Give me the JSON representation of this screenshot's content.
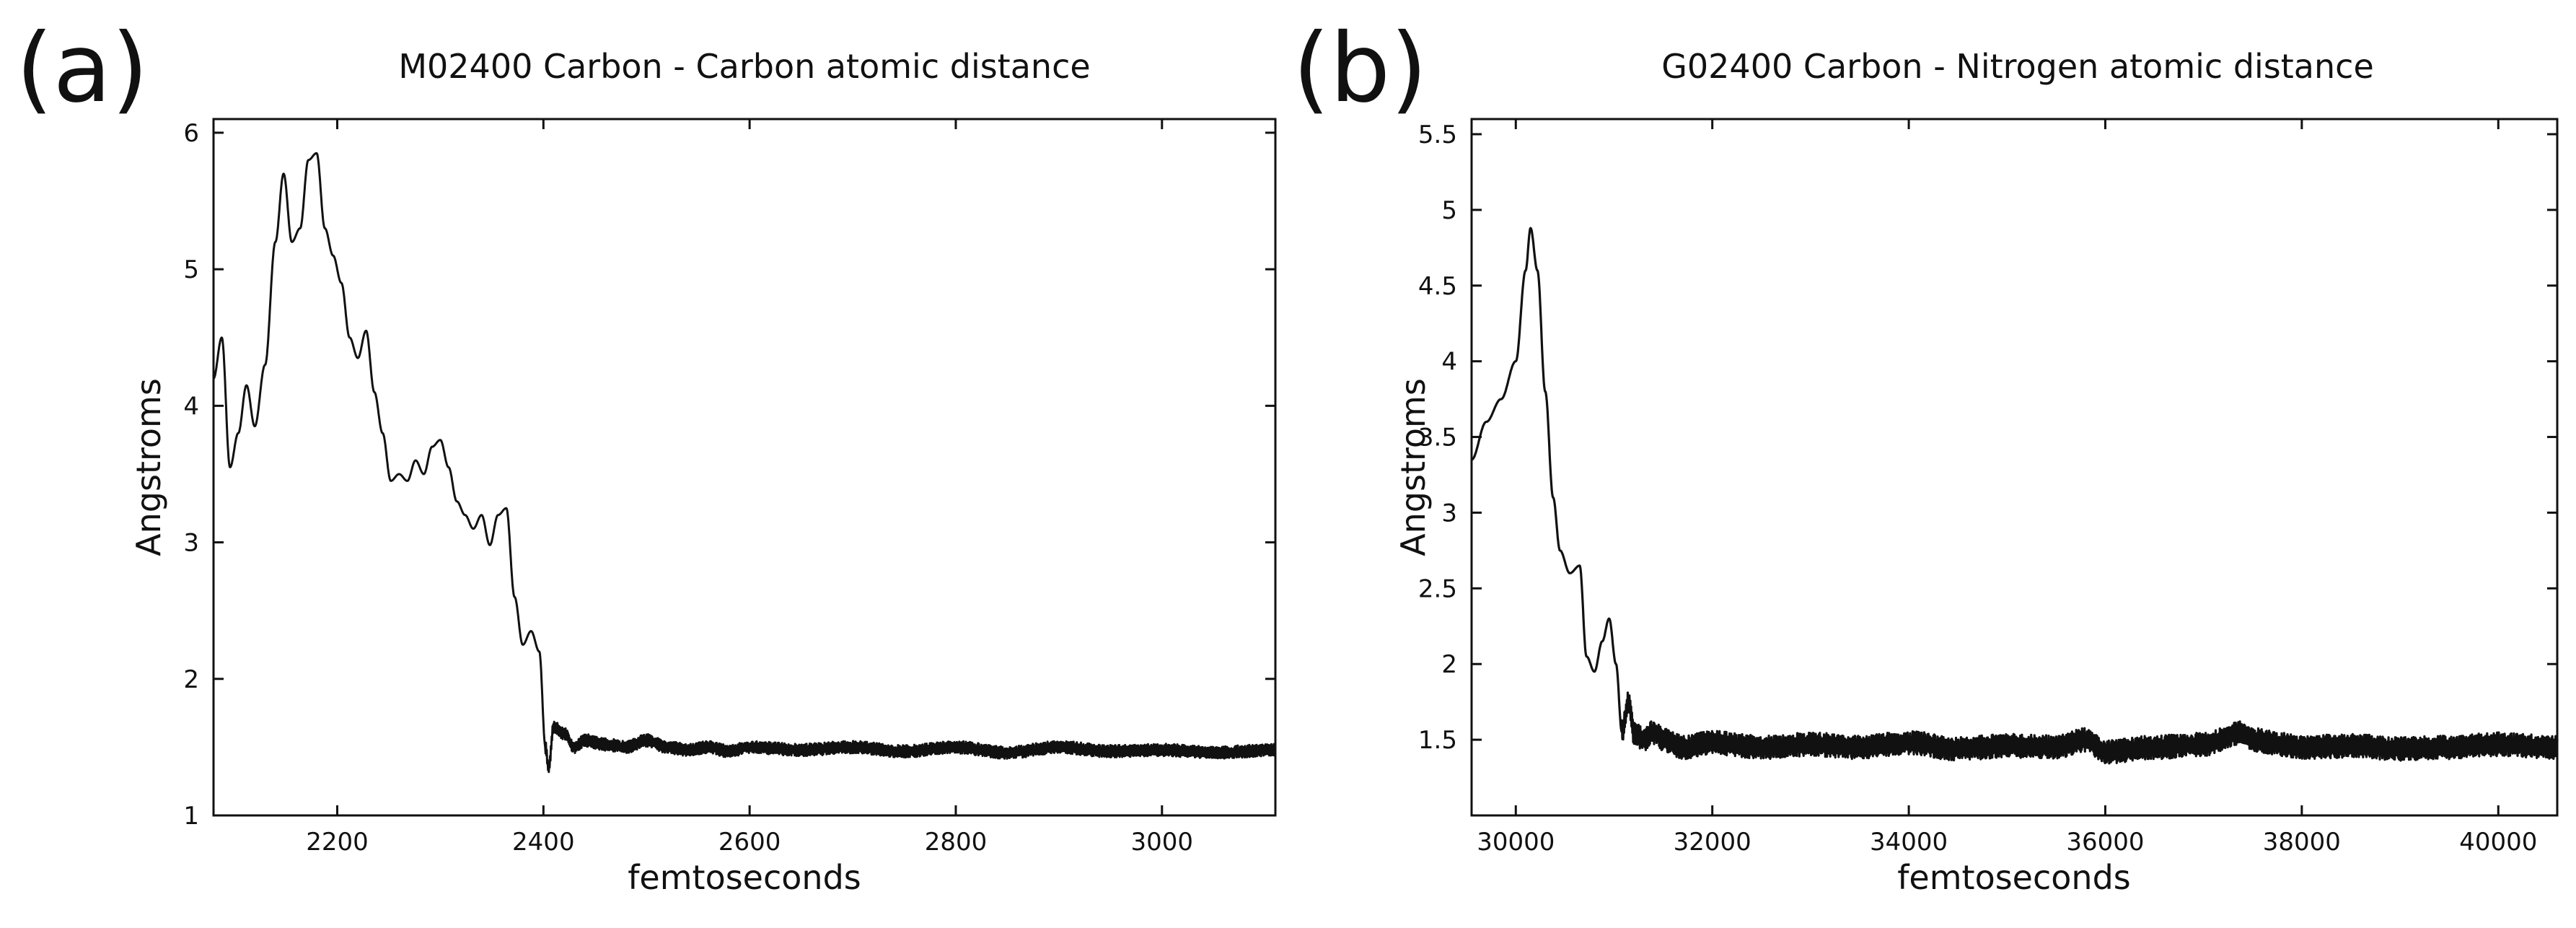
{
  "chart_data": [
    {
      "panel_label": "(a)",
      "type": "line",
      "title": "M02400 Carbon - Carbon atomic distance",
      "xlabel": "femtoseconds",
      "ylabel": "Angstroms",
      "xlim": [
        2080,
        3110
      ],
      "ylim": [
        1,
        6.1
      ],
      "xticks": [
        2200,
        2400,
        2600,
        2800,
        3000
      ],
      "yticks": [
        1,
        2,
        3,
        4,
        5,
        6
      ],
      "grid": false,
      "legend": "none",
      "color": "#111111",
      "series": [
        {
          "x": [
            2080,
            2088,
            2096,
            2104,
            2112,
            2120,
            2130,
            2140,
            2148,
            2156,
            2164,
            2172,
            2180,
            2188,
            2196,
            2204,
            2212,
            2220,
            2228,
            2236,
            2244,
            2252,
            2260,
            2268,
            2276,
            2284,
            2292,
            2300,
            2308,
            2316,
            2324,
            2332,
            2340,
            2348,
            2356,
            2364,
            2372,
            2380,
            2388,
            2396,
            2402,
            2405,
            2410,
            2420,
            2430,
            2440,
            2460,
            2480,
            2500,
            2520,
            2540,
            2560,
            2580,
            2600,
            2650,
            2700,
            2750,
            2800,
            2850,
            2900,
            2950,
            3000,
            3050,
            3110
          ],
          "y": [
            4.2,
            4.5,
            3.55,
            3.8,
            4.15,
            3.85,
            4.3,
            5.2,
            5.7,
            5.2,
            5.3,
            5.8,
            5.85,
            5.3,
            5.1,
            4.9,
            4.5,
            4.35,
            4.55,
            4.1,
            3.8,
            3.45,
            3.5,
            3.45,
            3.6,
            3.5,
            3.7,
            3.75,
            3.55,
            3.3,
            3.2,
            3.1,
            3.2,
            2.98,
            3.2,
            3.25,
            2.6,
            2.25,
            2.35,
            2.2,
            1.5,
            1.35,
            1.65,
            1.6,
            1.5,
            1.55,
            1.52,
            1.5,
            1.55,
            1.5,
            1.48,
            1.5,
            1.47,
            1.5,
            1.48,
            1.5,
            1.47,
            1.5,
            1.46,
            1.5,
            1.47,
            1.48,
            1.46,
            1.48
          ]
        }
      ]
    },
    {
      "panel_label": "(b)",
      "type": "line",
      "title": "G02400 Carbon - Nitrogen atomic distance",
      "xlabel": "femtoseconds",
      "ylabel": "Angstroms",
      "xlim": [
        29550,
        40600
      ],
      "ylim": [
        1,
        5.6
      ],
      "xticks": [
        30000,
        32000,
        34000,
        36000,
        38000,
        40000
      ],
      "yticks": [
        1.5,
        2,
        2.5,
        3,
        3.5,
        4,
        4.5,
        5,
        5.5
      ],
      "grid": false,
      "legend": "none",
      "color": "#111111",
      "series": [
        {
          "x": [
            29550,
            29700,
            29850,
            30000,
            30100,
            30150,
            30220,
            30300,
            30380,
            30450,
            30550,
            30650,
            30720,
            30800,
            30880,
            30950,
            31020,
            31080,
            31150,
            31200,
            31300,
            31400,
            31500,
            31700,
            32000,
            32500,
            33000,
            33500,
            34000,
            34500,
            35000,
            35500,
            35800,
            36000,
            36500,
            37000,
            37400,
            37500,
            37800,
            38000,
            38500,
            39000,
            39500,
            40000,
            40600
          ],
          "y": [
            3.35,
            3.6,
            3.75,
            4.0,
            4.6,
            4.88,
            4.6,
            3.8,
            3.1,
            2.75,
            2.6,
            2.65,
            2.05,
            1.95,
            2.15,
            2.3,
            2.0,
            1.55,
            1.75,
            1.55,
            1.5,
            1.55,
            1.5,
            1.45,
            1.48,
            1.45,
            1.47,
            1.45,
            1.48,
            1.44,
            1.46,
            1.45,
            1.5,
            1.42,
            1.45,
            1.47,
            1.55,
            1.5,
            1.47,
            1.45,
            1.46,
            1.44,
            1.45,
            1.47,
            1.45
          ]
        }
      ]
    }
  ]
}
